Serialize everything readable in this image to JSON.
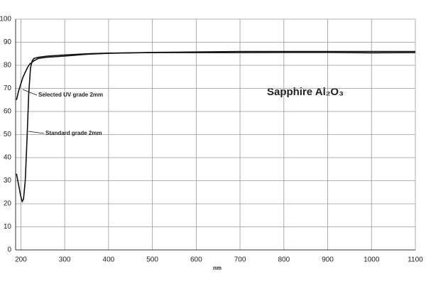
{
  "chart_data": {
    "type": "line",
    "title": "Sapphire Al₂O₃",
    "x_label": "nm",
    "xlim": [
      188,
      1100
    ],
    "xticks": [
      200,
      300,
      400,
      500,
      600,
      700,
      800,
      900,
      1000,
      1100
    ],
    "ylim": [
      0,
      100
    ],
    "yticks": [
      0,
      10,
      20,
      30,
      40,
      50,
      60,
      70,
      80,
      90,
      100
    ],
    "grid": true,
    "series": [
      {
        "name": "Selected UV grade 2mm",
        "color": "#111111",
        "x": [
          190,
          195,
          200,
          205,
          210,
          215,
          220,
          230,
          240,
          260,
          300,
          350,
          400,
          500,
          600,
          700,
          800,
          900,
          1000,
          1100
        ],
        "values": [
          65,
          69,
          72,
          75,
          77,
          79,
          80.5,
          82,
          83,
          83.5,
          84,
          84.8,
          85.2,
          85.6,
          85.8,
          86,
          86,
          86,
          86,
          86
        ]
      },
      {
        "name": "Standard grade 2mm",
        "color": "#111111",
        "x": [
          190,
          195,
          200,
          203,
          206,
          210,
          214,
          218,
          222,
          226,
          230,
          240,
          260,
          300,
          350,
          400,
          500,
          600,
          700,
          800,
          900,
          1000,
          1100
        ],
        "values": [
          33,
          28,
          23,
          21,
          22,
          30,
          48,
          68,
          79,
          82,
          83,
          83.5,
          84,
          84.5,
          85,
          85.3,
          85.5,
          85.5,
          85.5,
          85.6,
          85.6,
          85.4,
          85.5
        ]
      }
    ]
  }
}
